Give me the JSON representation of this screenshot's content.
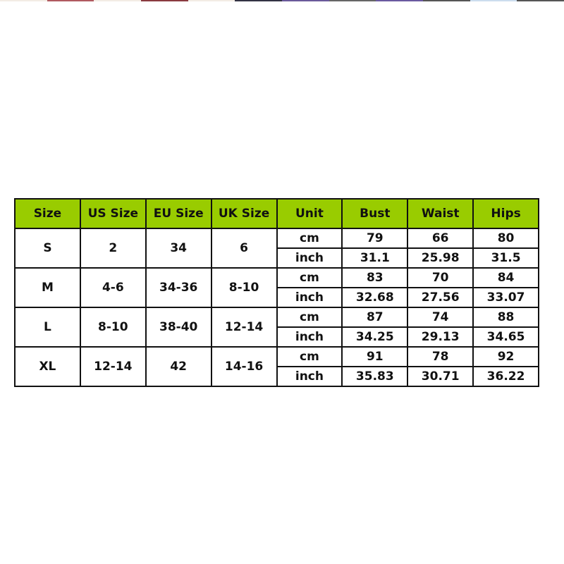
{
  "colors": {
    "header_bg": "#99cc00",
    "border": "#111111"
  },
  "table": {
    "headers": [
      "Size",
      "US Size",
      "EU Size",
      "UK Size",
      "Unit",
      "Bust",
      "Waist",
      "Hips"
    ],
    "rows": [
      {
        "size": "S",
        "us": "2",
        "eu": "34",
        "uk": "6",
        "cm": [
          "cm",
          "79",
          "66",
          "80"
        ],
        "inch": [
          "inch",
          "31.1",
          "25.98",
          "31.5"
        ]
      },
      {
        "size": "M",
        "us": "4-6",
        "eu": "34-36",
        "uk": "8-10",
        "cm": [
          "cm",
          "83",
          "70",
          "84"
        ],
        "inch": [
          "inch",
          "32.68",
          "27.56",
          "33.07"
        ]
      },
      {
        "size": "L",
        "us": "8-10",
        "eu": "38-40",
        "uk": "12-14",
        "cm": [
          "cm",
          "87",
          "74",
          "88"
        ],
        "inch": [
          "inch",
          "34.25",
          "29.13",
          "34.65"
        ]
      },
      {
        "size": "XL",
        "us": "12-14",
        "eu": "42",
        "uk": "14-16",
        "cm": [
          "cm",
          "91",
          "78",
          "92"
        ],
        "inch": [
          "inch",
          "35.83",
          "30.71",
          "36.22"
        ]
      }
    ]
  }
}
